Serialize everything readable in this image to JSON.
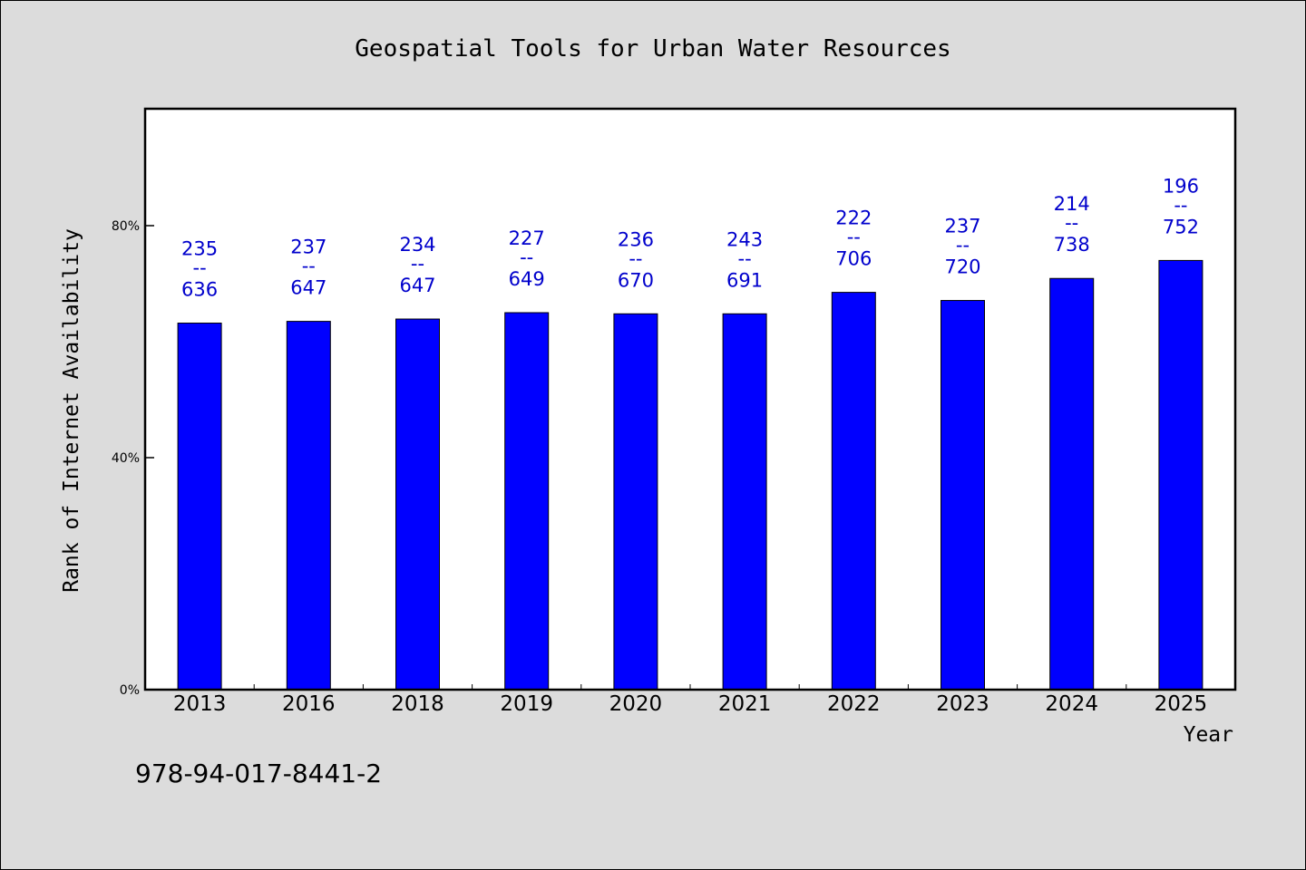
{
  "chart_data": {
    "type": "bar",
    "title": "Geospatial Tools for Urban Water Resources",
    "xlabel": "Year",
    "ylabel": "Rank of Internet Availability",
    "categories": [
      "2013",
      "2016",
      "2018",
      "2019",
      "2020",
      "2021",
      "2022",
      "2023",
      "2024",
      "2025"
    ],
    "values": [
      63.2,
      63.5,
      63.9,
      65.0,
      64.8,
      64.8,
      68.5,
      67.1,
      70.9,
      74.0
    ],
    "label_top": [
      "235",
      "237",
      "234",
      "227",
      "236",
      "243",
      "222",
      "237",
      "214",
      "196"
    ],
    "label_bottom": [
      "636",
      "647",
      "647",
      "649",
      "670",
      "691",
      "706",
      "720",
      "738",
      "752"
    ],
    "label_separator": "--",
    "yticks": [
      0,
      40,
      80
    ],
    "ytick_labels": [
      "0%",
      "40%",
      "80%"
    ],
    "ylim": [
      0,
      100
    ],
    "grid": false,
    "legend": "none",
    "bar_color": "#0000ff",
    "label_color": "#0000cc",
    "background": "#dcdcdc",
    "plot_background": "#ffffff"
  },
  "footer": {
    "isbn": "978-94-017-8441-2"
  }
}
